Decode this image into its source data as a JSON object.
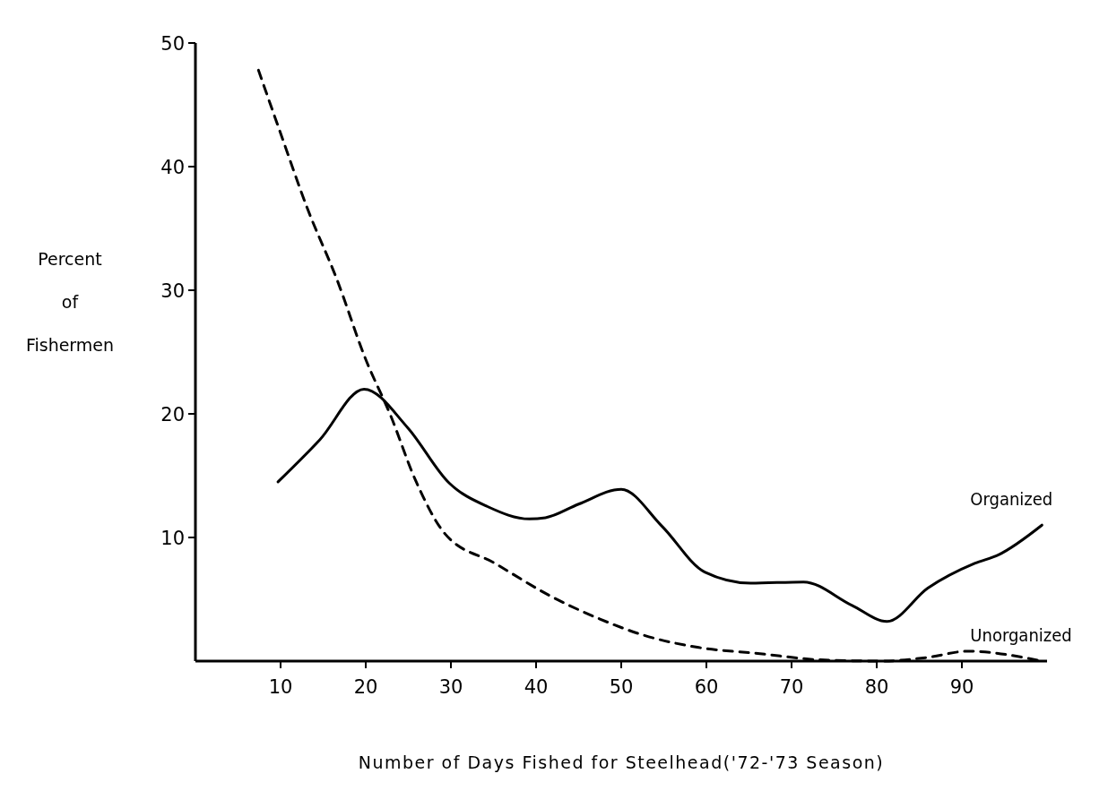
{
  "chart_data": {
    "type": "line",
    "xlabel": "Number of Days Fished for Steelhead('72-'73 Season)",
    "ylabel": "Percent of Fishermen",
    "xlim": [
      0,
      100
    ],
    "xticks": [
      10,
      20,
      30,
      40,
      50,
      60,
      70,
      80,
      90
    ],
    "ylim": [
      0,
      50
    ],
    "yticks": [
      10,
      20,
      30,
      40,
      50
    ],
    "grid": false,
    "marker": "none",
    "series": [
      {
        "name": "Organized",
        "color": "#000000",
        "line_style": "solid",
        "x": [
          9.7,
          14.6,
          19.8,
          24.9,
          29.8,
          34.3,
          39.2,
          41.1,
          45,
          50,
          54.8,
          59.8,
          65.2,
          71.4,
          77.1,
          81.2,
          86,
          91.5,
          94.3,
          99.4
        ],
        "values": [
          14.5,
          17.9,
          22,
          18.9,
          14.4,
          12.5,
          11.5,
          11.6,
          12.7,
          13.9,
          10.9,
          7.2,
          6.3,
          6.4,
          4.5,
          3.2,
          5.9,
          7.9,
          8.6,
          11
        ]
      },
      {
        "name": "Unorganized",
        "color": "#000000",
        "line_style": "dashed",
        "x": [
          7.4,
          10.1,
          13.1,
          16.6,
          20,
          22.9,
          25.8,
          29.3,
          35.2,
          41.6,
          47.5,
          52.6,
          59.1,
          66.3,
          73.4,
          80.6,
          86,
          90.7,
          99.4
        ],
        "values": [
          47.8,
          42.5,
          36.7,
          30.9,
          24.4,
          19.9,
          14.7,
          10.3,
          7.9,
          5.3,
          3.4,
          2.1,
          1.1,
          0.6,
          0.1,
          0,
          0.3,
          0.8,
          0
        ]
      }
    ]
  }
}
